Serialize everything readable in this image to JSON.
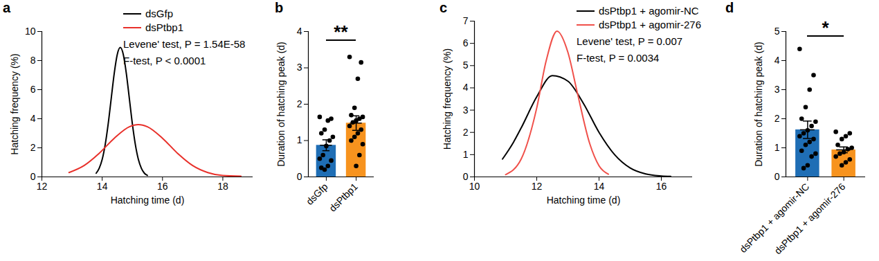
{
  "chart_data": [
    {
      "type": "line",
      "title": "a",
      "x_label": "Hatching time (d)",
      "y_label": "Hatching frequency (%)",
      "xlim": [
        12,
        19
      ],
      "xticks": [
        12,
        14,
        16,
        18
      ],
      "ylim": [
        0,
        10
      ],
      "yticks": [
        0,
        2,
        4,
        6,
        8,
        10
      ],
      "legend": "top",
      "series": [
        {
          "name": "dsGfp",
          "color": "#000000",
          "x": [
            13.8,
            13.9,
            14.0,
            14.1,
            14.2,
            14.3,
            14.4,
            14.5,
            14.6,
            14.7,
            14.8,
            14.9,
            15.0,
            15.1,
            15.2,
            15.3,
            15.4,
            15.5
          ],
          "values": [
            0.25,
            0.59,
            1.2,
            2.22,
            3.66,
            5.4,
            7.13,
            8.42,
            8.9,
            8.42,
            7.13,
            5.4,
            3.66,
            2.22,
            1.2,
            0.59,
            0.25,
            0.1
          ]
        },
        {
          "name": "dsPtbp1",
          "color": "#e8302a",
          "x": [
            12.9,
            13.4,
            13.9,
            14.4,
            14.9,
            15.2,
            15.5,
            16.0,
            16.5,
            17.0,
            17.5,
            18.0,
            18.6
          ],
          "values": [
            0.3,
            0.78,
            1.62,
            2.66,
            3.45,
            3.6,
            3.45,
            2.66,
            1.62,
            0.78,
            0.3,
            0.09,
            0.05
          ]
        }
      ],
      "annotations": [
        "Levene' test, P = 1.54E-58",
        "F-test, P < 0.0001"
      ]
    },
    {
      "type": "bar",
      "title": "b",
      "y_label": "Duration of hatching peak (d)",
      "categories": [
        "dsGfp",
        "dsPtbp1"
      ],
      "values": [
        0.87,
        1.48
      ],
      "errors": [
        0.15,
        0.2
      ],
      "colors": [
        "#1f6eb5",
        "#f7931e"
      ],
      "points": [
        [
          1.65,
          1.6,
          1.55,
          1.3,
          1.2,
          1.1,
          1.0,
          0.85,
          0.6,
          0.5,
          0.45,
          0.3,
          0.2,
          0.25
        ],
        [
          3.3,
          3.15,
          2.7,
          1.9,
          1.7,
          1.65,
          1.6,
          1.55,
          1.5,
          1.4,
          1.3,
          1.2,
          1.1,
          1.0,
          0.9,
          0.6,
          0.3
        ]
      ],
      "ylim": [
        0,
        4
      ],
      "yticks": [
        0,
        1,
        2,
        3,
        4
      ],
      "annotations": [
        "**"
      ]
    },
    {
      "type": "line",
      "title": "c",
      "x_label": "Hatching time (d)",
      "y_label": "Hatching frequency (%)",
      "xlim": [
        10,
        17
      ],
      "xticks": [
        10,
        12,
        14,
        16
      ],
      "ylim": [
        0,
        7
      ],
      "yticks": [
        0,
        1,
        2,
        3,
        4,
        5,
        6,
        7
      ],
      "legend": "top",
      "series": [
        {
          "name": "dsPtbp1 + agomir-NC",
          "color": "#000000",
          "x": [
            10.9,
            11.25,
            11.5,
            12.0,
            12.5,
            13.0,
            13.5,
            14.0,
            14.5,
            15.0,
            15.5,
            16.0,
            16.3
          ],
          "values": [
            0.8,
            1.55,
            2.2,
            3.6,
            4.55,
            4.3,
            3.3,
            2.0,
            1.0,
            0.4,
            0.13,
            0.04,
            0.02
          ]
        },
        {
          "name": "dsPtbp1 + agomir-276",
          "color": "#f0504a",
          "x": [
            11.0,
            11.5,
            12.0,
            12.3,
            12.65,
            13.0,
            13.3,
            13.7,
            14.0,
            14.3
          ],
          "values": [
            0.1,
            0.8,
            3.1,
            5.2,
            6.55,
            5.6,
            3.8,
            1.5,
            0.5,
            0.12
          ]
        }
      ],
      "annotations": [
        "Levene' test, P = 0.007",
        "F-test, P = 0.0034"
      ]
    },
    {
      "type": "bar",
      "title": "d",
      "y_label": "Duration of hatching peak (d)",
      "categories": [
        "dsPtbp1 + agomir-NC",
        "dsPtbp1 + agomir-276"
      ],
      "values": [
        1.62,
        0.93
      ],
      "errors": [
        0.3,
        0.1
      ],
      "colors": [
        "#1f6eb5",
        "#f7931e"
      ],
      "points": [
        [
          4.4,
          3.5,
          3.0,
          2.4,
          2.0,
          1.9,
          1.75,
          1.6,
          1.5,
          1.4,
          1.3,
          1.2,
          1.1,
          0.9,
          0.8,
          0.7,
          0.4,
          0.3
        ],
        [
          1.55,
          1.5,
          1.4,
          1.3,
          1.1,
          1.0,
          0.95,
          0.85,
          0.8,
          0.7,
          0.6,
          0.5,
          0.4
        ]
      ],
      "ylim": [
        0,
        5
      ],
      "yticks": [
        0,
        1,
        2,
        3,
        4,
        5
      ],
      "annotations": [
        "*"
      ]
    }
  ]
}
